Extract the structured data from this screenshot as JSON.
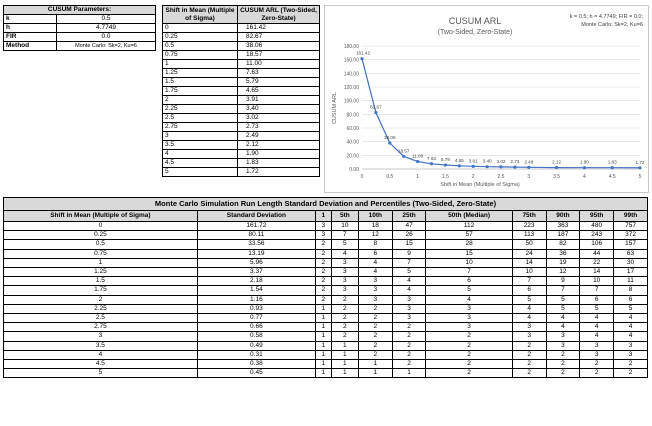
{
  "params": {
    "title": "CUSUM Parameters:",
    "rows": [
      {
        "key": "k",
        "value": "0.5"
      },
      {
        "key": "h",
        "value": "4.7749"
      },
      {
        "key": "FIR",
        "value": "0.0"
      },
      {
        "key": "Method",
        "value": "Monte Carlo: Sk=2, Ku=6"
      }
    ]
  },
  "arl_table": {
    "col1": "Shift in Mean (Multiple of Sigma)",
    "col2": "CUSUM ARL (Two-Sided, Zero-State)",
    "rows": [
      [
        "0",
        "161.42"
      ],
      [
        "0.25",
        "82.67"
      ],
      [
        "0.5",
        "38.06"
      ],
      [
        "0.75",
        "18.57"
      ],
      [
        "1",
        "11.00"
      ],
      [
        "1.25",
        "7.63"
      ],
      [
        "1.5",
        "5.79"
      ],
      [
        "1.75",
        "4.65"
      ],
      [
        "2",
        "3.91"
      ],
      [
        "2.25",
        "3.40"
      ],
      [
        "2.5",
        "3.02"
      ],
      [
        "2.75",
        "2.73"
      ],
      [
        "3",
        "2.49"
      ],
      [
        "3.5",
        "2.12"
      ],
      [
        "4",
        "1.90"
      ],
      [
        "4.5",
        "1.83"
      ],
      [
        "5",
        "1.72"
      ]
    ]
  },
  "chart_data": {
    "type": "line",
    "title": "CUSUM ARL",
    "subtitle": "(Two-Sided, Zero-State)",
    "note_line1": "k = 0.5; h = 4.7749; FIR = 0.0;",
    "note_line2": "Monte Carlo: Sk=2, Ku=6",
    "xlabel": "Shift in Mean (Multiple of Sigma)",
    "ylabel": "CUSUM ARL",
    "x": [
      0,
      0.25,
      0.5,
      0.75,
      1,
      1.25,
      1.5,
      1.75,
      2,
      2.25,
      2.5,
      2.75,
      3,
      3.5,
      4,
      4.5,
      5
    ],
    "y": [
      161.42,
      82.67,
      38.06,
      18.57,
      11.0,
      7.63,
      5.79,
      4.65,
      3.91,
      3.4,
      3.02,
      2.73,
      2.49,
      2.12,
      1.9,
      1.83,
      1.72
    ],
    "labels": [
      "161.42",
      "82.67",
      "38.06",
      "18.57",
      "11.00",
      "7.63",
      "5.79",
      "4.65",
      "3.91",
      "3.40",
      "3.02",
      "2.73",
      "2.49",
      "2.12",
      "1.90",
      "1.83",
      "1.72"
    ],
    "xlim": [
      0,
      5
    ],
    "ylim": [
      0,
      180
    ],
    "xticks": [
      0,
      0.5,
      1,
      1.5,
      2,
      2.5,
      3,
      3.5,
      4,
      4.5,
      5
    ],
    "xtick_labels": [
      "0",
      "0.5",
      "1",
      "1.5",
      "2",
      "2.5",
      "3",
      "3.5",
      "4",
      "4.5",
      "5"
    ],
    "yticks": [
      0,
      20,
      40,
      60,
      80,
      100,
      120,
      140,
      160,
      180
    ],
    "ytick_labels": [
      "0.00",
      "20.00",
      "40.00",
      "60.00",
      "80.00",
      "100.00",
      "120.00",
      "140.00",
      "160.00",
      "180.00"
    ],
    "grid": true,
    "line_color": "#4472c4"
  },
  "mc_table": {
    "title": "Monte Carlo Simulation Run Length Standard Deviation and Percentiles (Two-Sided, Zero-State)",
    "headers": [
      "Shift in Mean (Multiple of Sigma)",
      "Standard Deviation",
      "1",
      "5th",
      "10th",
      "25th",
      "50th (Median)",
      "75th",
      "90th",
      "95th",
      "99th"
    ],
    "rows": [
      [
        "0",
        "161.72",
        "3",
        "10",
        "18",
        "47",
        "112",
        "223",
        "363",
        "480",
        "757"
      ],
      [
        "0.25",
        "80.11",
        "3",
        "7",
        "12",
        "26",
        "57",
        "113",
        "187",
        "243",
        "372"
      ],
      [
        "0.5",
        "33.56",
        "2",
        "5",
        "8",
        "15",
        "28",
        "50",
        "82",
        "106",
        "157"
      ],
      [
        "0.75",
        "13.19",
        "2",
        "4",
        "6",
        "9",
        "15",
        "24",
        "36",
        "44",
        "63"
      ],
      [
        "1",
        "5.96",
        "2",
        "3",
        "4",
        "7",
        "10",
        "14",
        "19",
        "22",
        "30"
      ],
      [
        "1.25",
        "3.37",
        "2",
        "3",
        "4",
        "5",
        "7",
        "10",
        "12",
        "14",
        "17"
      ],
      [
        "1.5",
        "2.18",
        "2",
        "3",
        "3",
        "4",
        "6",
        "7",
        "9",
        "10",
        "11"
      ],
      [
        "1.75",
        "1.54",
        "2",
        "3",
        "3",
        "4",
        "5",
        "6",
        "7",
        "7",
        "8"
      ],
      [
        "2",
        "1.16",
        "2",
        "2",
        "3",
        "3",
        "4",
        "5",
        "5",
        "6",
        "6"
      ],
      [
        "2.25",
        "0.93",
        "1",
        "2",
        "2",
        "3",
        "3",
        "4",
        "5",
        "5",
        "5"
      ],
      [
        "2.5",
        "0.77",
        "1",
        "2",
        "2",
        "3",
        "3",
        "4",
        "4",
        "4",
        "4"
      ],
      [
        "2.75",
        "0.66",
        "1",
        "2",
        "2",
        "2",
        "3",
        "3",
        "4",
        "4",
        "4"
      ],
      [
        "3",
        "0.58",
        "1",
        "2",
        "2",
        "2",
        "2",
        "3",
        "3",
        "4",
        "4"
      ],
      [
        "3.5",
        "0.49",
        "1",
        "1",
        "2",
        "2",
        "2",
        "2",
        "3",
        "3",
        "3"
      ],
      [
        "4",
        "0.31",
        "1",
        "1",
        "2",
        "2",
        "2",
        "2",
        "2",
        "3",
        "3"
      ],
      [
        "4.5",
        "0.38",
        "1",
        "1",
        "1",
        "2",
        "2",
        "2",
        "2",
        "2",
        "2"
      ],
      [
        "5",
        "0.45",
        "1",
        "1",
        "1",
        "1",
        "2",
        "2",
        "2",
        "2",
        "2"
      ]
    ]
  }
}
